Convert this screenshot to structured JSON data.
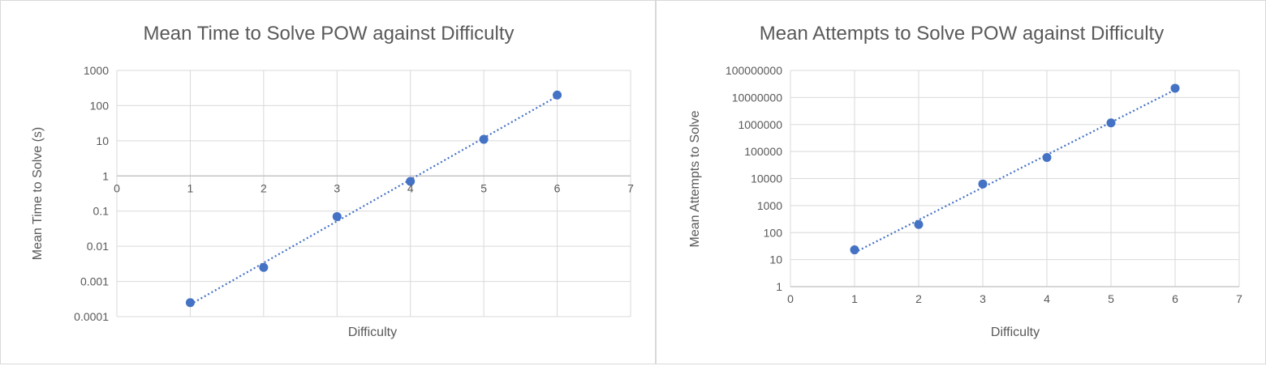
{
  "chart_data": [
    {
      "type": "scatter",
      "title": "Mean Time to Solve POW against Difficulty",
      "xlabel": "Difficulty",
      "ylabel": "Mean Time to Solve (s)",
      "xlim": [
        0,
        7
      ],
      "ylim": [
        0.0001,
        1000
      ],
      "yscale": "log",
      "x_ticks": [
        "0",
        "1",
        "2",
        "3",
        "4",
        "5",
        "6",
        "7"
      ],
      "y_ticks": [
        "0.0001",
        "0.001",
        "0.01",
        "0.1",
        "1",
        "10",
        "100",
        "1000"
      ],
      "grid": true,
      "trendline": "exponential, dotted",
      "color": "#4472c4",
      "points": [
        {
          "x": 1,
          "y": 0.00025
        },
        {
          "x": 2,
          "y": 0.0025
        },
        {
          "x": 3,
          "y": 0.07
        },
        {
          "x": 4,
          "y": 0.7
        },
        {
          "x": 5,
          "y": 11
        },
        {
          "x": 6,
          "y": 200
        }
      ]
    },
    {
      "type": "scatter",
      "title": "Mean Attempts to Solve POW against Difficulty",
      "xlabel": "Difficulty",
      "ylabel": "Mean Attempts to Solve",
      "xlim": [
        0,
        7
      ],
      "ylim": [
        1,
        100000000
      ],
      "yscale": "log",
      "x_ticks": [
        "0",
        "1",
        "2",
        "3",
        "4",
        "5",
        "6",
        "7"
      ],
      "y_ticks": [
        "1",
        "10",
        "100",
        "1000",
        "10000",
        "100000",
        "1000000",
        "10000000",
        "100000000"
      ],
      "grid": true,
      "trendline": "exponential, dotted",
      "color": "#4472c4",
      "points": [
        {
          "x": 1,
          "y": 23
        },
        {
          "x": 2,
          "y": 200
        },
        {
          "x": 3,
          "y": 6300
        },
        {
          "x": 4,
          "y": 60000
        },
        {
          "x": 5,
          "y": 1150000
        },
        {
          "x": 6,
          "y": 22000000
        }
      ]
    }
  ]
}
